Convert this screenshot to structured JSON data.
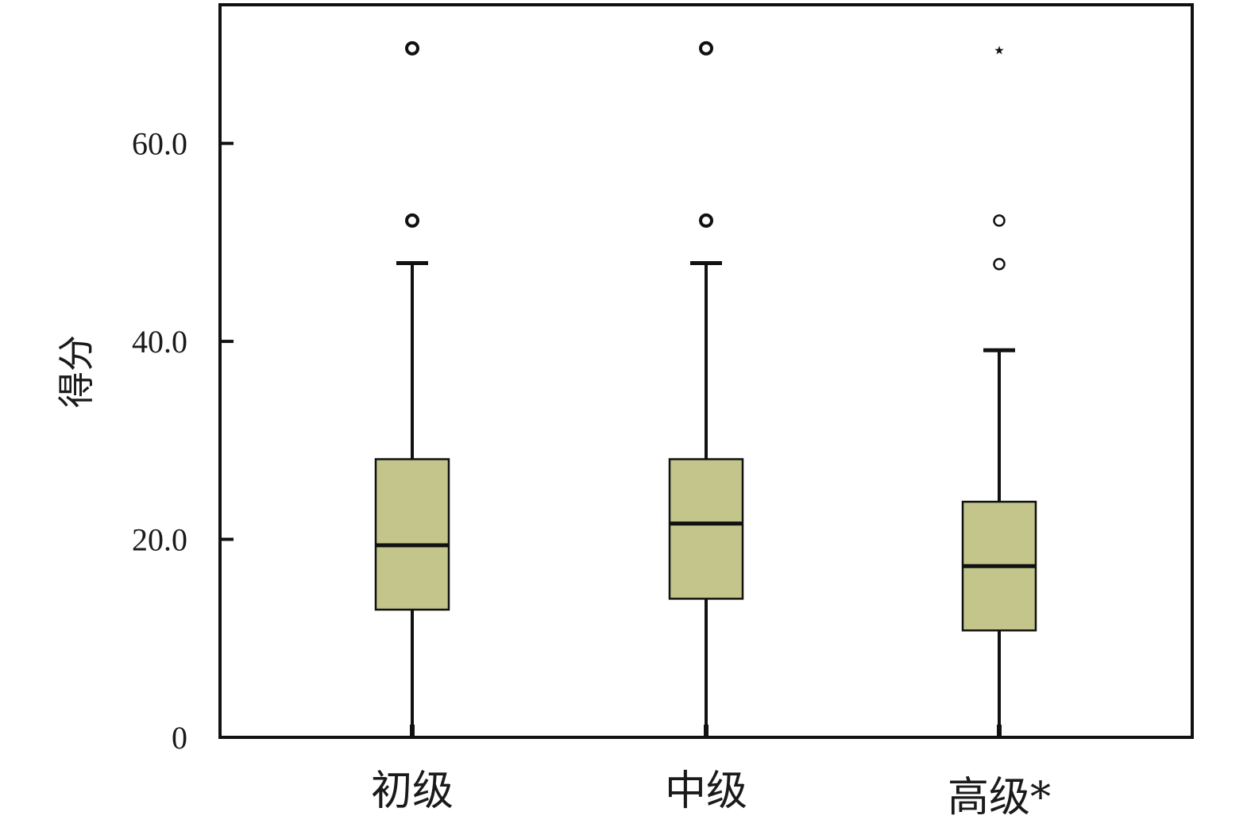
{
  "chart_data": {
    "type": "box",
    "ylabel": "得分",
    "xlabel": "",
    "ylim": [
      0,
      74
    ],
    "yticks": [
      {
        "value": 0,
        "label": "0"
      },
      {
        "value": 20,
        "label": "20.0"
      },
      {
        "value": 40,
        "label": "40.0"
      },
      {
        "value": 60,
        "label": "60.0"
      }
    ],
    "grid": false,
    "box_color": "#c3c58a",
    "line_color": "#111111",
    "categories": [
      "初级",
      "中级",
      "高级*"
    ],
    "boxes": [
      {
        "category": "初级",
        "whisker_low": 0,
        "q1": 12.9,
        "median": 19.4,
        "q3": 28.1,
        "whisker_high": 47.9,
        "outliers": [
          {
            "value": 52.2,
            "marker": "circle"
          },
          {
            "value": 69.6,
            "marker": "circle"
          }
        ]
      },
      {
        "category": "中级",
        "whisker_low": 0,
        "q1": 14.0,
        "median": 21.6,
        "q3": 28.1,
        "whisker_high": 47.9,
        "outliers": [
          {
            "value": 52.2,
            "marker": "circle"
          },
          {
            "value": 69.6,
            "marker": "circle"
          }
        ]
      },
      {
        "category": "高级*",
        "whisker_low": 0,
        "q1": 10.8,
        "median": 17.3,
        "q3": 23.8,
        "whisker_high": 39.1,
        "outliers": [
          {
            "value": 47.8,
            "marker": "circle"
          },
          {
            "value": 52.2,
            "marker": "circle"
          },
          {
            "value": 69.6,
            "marker": "star"
          }
        ]
      }
    ]
  }
}
